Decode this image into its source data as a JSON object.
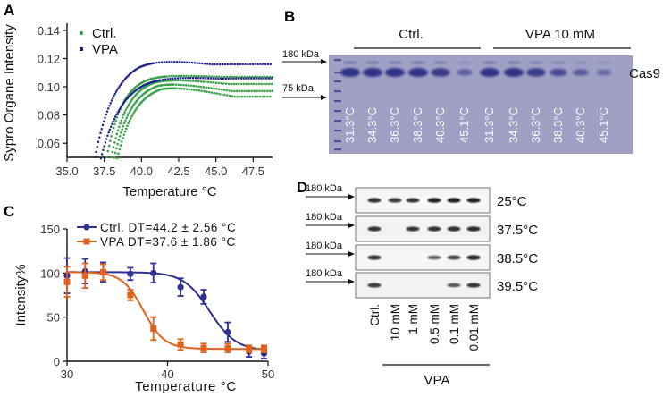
{
  "panel_labels": {
    "a": "A",
    "b": "B",
    "c": "C",
    "d": "D"
  },
  "chart_data": [
    {
      "panel": "A",
      "type": "scatter",
      "xlabel": "Temperature °C",
      "ylabel": "Sypro Organe Intensity",
      "xlim": [
        35.0,
        48.8
      ],
      "ylim": [
        0.05,
        0.145
      ],
      "xticks": [
        "35.0",
        "37.5",
        "40.0",
        "42.5",
        "45.0",
        "47.5"
      ],
      "yticks": [
        "0.06",
        "0.08",
        "0.10",
        "0.12",
        "0.14"
      ],
      "legend_position": "top-left",
      "series": [
        {
          "name": "Ctrl.",
          "color": "#3aa24a",
          "curves": [
            {
              "onset": 37.6,
              "top": 0.109,
              "plateau": 0.107,
              "width": 0.95
            },
            {
              "onset": 37.9,
              "top": 0.107,
              "plateau": 0.102,
              "width": 1.0
            },
            {
              "onset": 38.1,
              "top": 0.105,
              "plateau": 0.097,
              "width": 1.05
            },
            {
              "onset": 38.3,
              "top": 0.103,
              "plateau": 0.093,
              "width": 1.1
            }
          ]
        },
        {
          "name": "VPA",
          "color": "#1f1f8c",
          "curves": [
            {
              "onset": 36.8,
              "top": 0.122,
              "plateau": 0.116,
              "width": 1.25
            },
            {
              "onset": 37.2,
              "top": 0.109,
              "plateau": 0.106,
              "width": 1.3
            }
          ]
        }
      ]
    },
    {
      "panel": "C",
      "type": "line",
      "xlabel": "Temperature °C",
      "ylabel": "Intensity%",
      "xlim": [
        30,
        50
      ],
      "ylim": [
        0,
        150
      ],
      "xticks": [
        "30",
        "40",
        "50"
      ],
      "yticks": [
        "0",
        "50",
        "100",
        "150"
      ],
      "legend_position": "top-left",
      "series": [
        {
          "name": "Ctrl. DT=44.2 ± 2.56 °C",
          "color": "#2e3192",
          "marker": "circle",
          "x": [
            30,
            31.8,
            33.6,
            36.3,
            38.6,
            41.3,
            43.6,
            46.0,
            48.1,
            49.6
          ],
          "y": [
            97,
            102,
            101,
            99,
            100,
            84,
            73,
            33,
            11,
            9
          ],
          "err": [
            20,
            14,
            11,
            7,
            11,
            10,
            8,
            11,
            6,
            6
          ],
          "fit": {
            "top": 101,
            "bottom": 12,
            "mid": 44.2,
            "slope": 1.3
          }
        },
        {
          "name": "VPA DT=37.6 ± 1.86 °C",
          "color": "#e2621b",
          "marker": "square",
          "x": [
            30,
            31.8,
            33.6,
            36.3,
            38.6,
            41.3,
            43.6,
            46.0,
            48.1,
            49.6
          ],
          "y": [
            90,
            97,
            101,
            75,
            37,
            19,
            15,
            15,
            14,
            14
          ],
          "err": [
            17,
            14,
            9,
            6,
            13,
            6,
            5,
            5,
            4,
            4
          ],
          "fit": {
            "top": 101,
            "bottom": 14,
            "mid": 37.6,
            "slope": 1.05
          }
        }
      ]
    }
  ],
  "gel_b": {
    "marker_labels": [
      "180 kDa",
      "75 kDa"
    ],
    "group_labels": [
      "Ctrl.",
      "VPA 10 mM"
    ],
    "protein_label": "Cas9",
    "lane_labels": [
      "31.3°C",
      "34.3°C",
      "36.3°C",
      "38.3°C",
      "40.3°C",
      "45.1°C",
      "31.3°C",
      "34.3°C",
      "36.3°C",
      "38.3°C",
      "40.3°C",
      "45.1°C"
    ],
    "band_strength": [
      1,
      1,
      1,
      1,
      0.9,
      0.45,
      1,
      1,
      0.9,
      0.7,
      0.5,
      0.35
    ],
    "colors": {
      "gel": "#a7a7c8",
      "band": "#2b2d84",
      "lane_text": "#ffffff"
    }
  },
  "blot_d": {
    "marker_label": "180 kDa",
    "rows": [
      {
        "temperature": "25°C",
        "bands": [
          0.9,
          0.8,
          0.85,
          1,
          1,
          1
        ]
      },
      {
        "temperature": "37.5°C",
        "bands": [
          0.9,
          0,
          0.85,
          0.9,
          0.9,
          0.95
        ]
      },
      {
        "temperature": "38.5°C",
        "bands": [
          0.85,
          0,
          0,
          0.55,
          0.75,
          0.95
        ]
      },
      {
        "temperature": "39.5°C",
        "bands": [
          0.8,
          0,
          0,
          0,
          0.6,
          0.85
        ]
      }
    ],
    "lane_labels": [
      "Ctrl.",
      "10 mM",
      "1 mM",
      "0.5 mM",
      "0.1 mM",
      "0.01 mM"
    ],
    "group_label": "VPA"
  }
}
